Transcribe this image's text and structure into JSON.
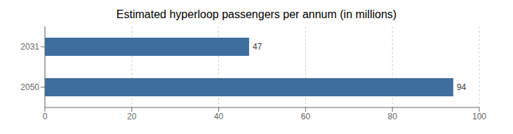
{
  "chart_data": {
    "type": "bar",
    "orientation": "horizontal",
    "title": "Estimated hyperloop passengers per annum (in millions)",
    "categories": [
      "2031",
      "2050"
    ],
    "values": [
      47,
      94
    ],
    "color": "#3D6E9E",
    "xlim": [
      0,
      100
    ],
    "xticks": [
      0,
      20,
      40,
      60,
      80,
      100
    ],
    "grid": true,
    "data_labels": true
  }
}
